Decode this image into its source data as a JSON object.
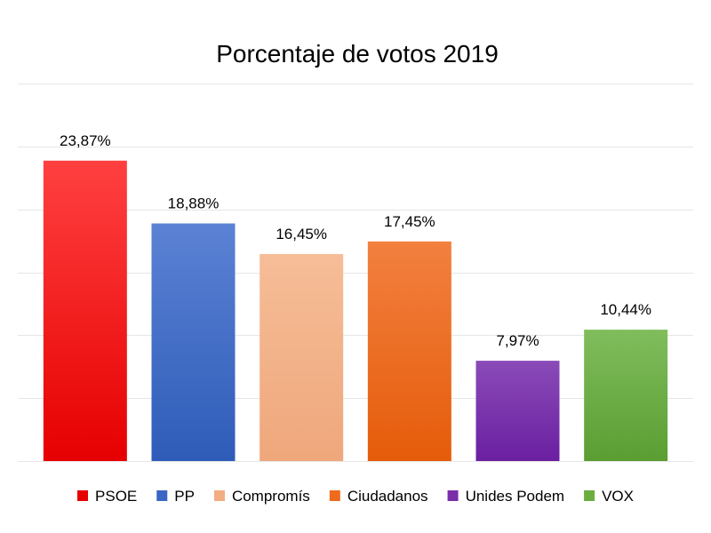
{
  "chart_data": {
    "type": "bar",
    "title": "Porcentaje de votos 2019",
    "categories": [
      "PSOE",
      "PP",
      "Compromís",
      "Ciudadanos",
      "Unides Podem",
      "VOX"
    ],
    "values": [
      23.87,
      18.88,
      16.45,
      17.45,
      7.97,
      10.44
    ],
    "value_labels": [
      "23,87%",
      "18,88%",
      "16,45%",
      "17,45%",
      "7,97%",
      "10,44%"
    ],
    "colors": [
      {
        "top": "#ff4040",
        "bottom": "#e60000"
      },
      {
        "top": "#5b82d4",
        "bottom": "#2e5cb8"
      },
      {
        "top": "#f6bd98",
        "bottom": "#efa77b"
      },
      {
        "top": "#f2803f",
        "bottom": "#e55c0a"
      },
      {
        "top": "#8a4bb8",
        "bottom": "#6a1fa0"
      },
      {
        "top": "#80bd5c",
        "bottom": "#5a9e32"
      }
    ],
    "legend_colors": [
      "#e60000",
      "#3a66c4",
      "#f2ad82",
      "#ee6a1c",
      "#7a2eaa",
      "#6aae40"
    ],
    "xlabel": "",
    "ylabel": "",
    "ylim": [
      0,
      30
    ],
    "grid": true,
    "y_axis_labels_visible": false,
    "legend_position": "bottom"
  }
}
